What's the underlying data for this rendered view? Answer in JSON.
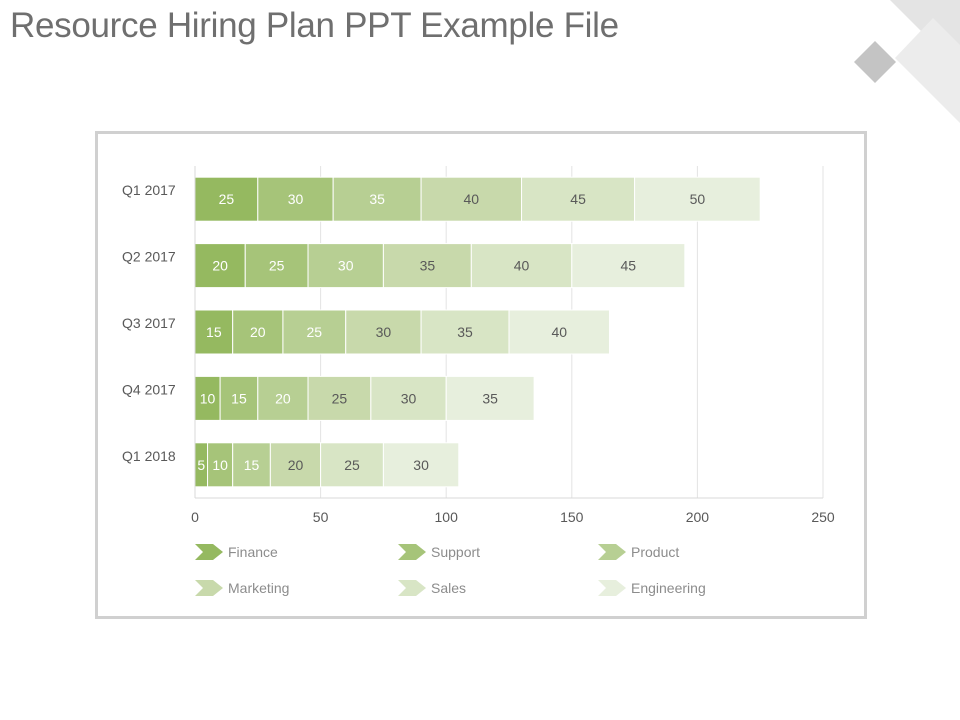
{
  "slide": {
    "title": "Resource Hiring Plan PPT Example File"
  },
  "chart_data": {
    "type": "bar",
    "orientation": "horizontal",
    "stacked": true,
    "title": "",
    "xlabel": "",
    "ylabel": "",
    "categories": [
      "Q1 2017",
      "Q2 2017",
      "Q3 2017",
      "Q4 2017",
      "Q1 2018"
    ],
    "series": [
      {
        "name": "Finance",
        "values": [
          25,
          20,
          15,
          10,
          5
        ],
        "color": "#95b960",
        "label_color": "#ffffff"
      },
      {
        "name": "Support",
        "values": [
          30,
          25,
          20,
          15,
          10
        ],
        "color": "#a6c479",
        "label_color": "#ffffff"
      },
      {
        "name": "Product",
        "values": [
          35,
          30,
          25,
          20,
          15
        ],
        "color": "#b7cf93",
        "label_color": "#ffffff"
      },
      {
        "name": "Marketing",
        "values": [
          40,
          35,
          30,
          25,
          20
        ],
        "color": "#c8d9ab",
        "label_color": "#595959"
      },
      {
        "name": "Sales",
        "values": [
          45,
          40,
          35,
          30,
          25
        ],
        "color": "#d8e5c5",
        "label_color": "#595959"
      },
      {
        "name": "Engineering",
        "values": [
          50,
          45,
          40,
          35,
          30
        ],
        "color": "#e7efdd",
        "label_color": "#595959"
      }
    ],
    "xlim": [
      0,
      250
    ],
    "xticks": [
      0,
      50,
      100,
      150,
      200,
      250
    ],
    "grid": true,
    "legend": "bottom",
    "data_labels": true
  }
}
